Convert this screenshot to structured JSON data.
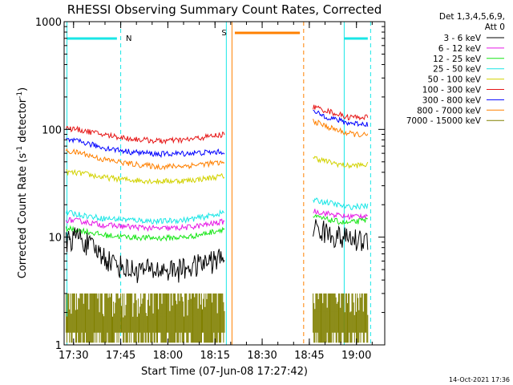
{
  "chart_data": {
    "type": "line",
    "title": "RHESSI Observing Summary Count Rates, Corrected",
    "xlabel": "Start Time (07-Jun-08 17:27:42)",
    "ylabel_parts": [
      "Corrected Count Rate (s",
      "-1",
      " detector",
      "-1",
      ")"
    ],
    "yscale": "log",
    "ylim": [
      1,
      1000
    ],
    "xlim_min": [
      17.45,
      19.15
    ],
    "x_ticks": [
      {
        "label": "17:30",
        "h": 17.5
      },
      {
        "label": "17:45",
        "h": 17.75
      },
      {
        "label": "18:00",
        "h": 18.0
      },
      {
        "label": "18:15",
        "h": 18.25
      },
      {
        "label": "18:30",
        "h": 18.5
      },
      {
        "label": "18:45",
        "h": 18.75
      },
      {
        "label": "19:00",
        "h": 19.0
      }
    ],
    "y_ticks": [
      {
        "label": "1",
        "v": 1
      },
      {
        "label": "10",
        "v": 10
      },
      {
        "label": "100",
        "v": 100
      },
      {
        "label": "1000",
        "v": 1000
      }
    ],
    "legend_header": [
      "Det 1,3,4,5,6,9,",
      "Att 0"
    ],
    "series": [
      {
        "name": "3 - 6 keV",
        "color": "#000000",
        "seg1": [
          [
            17.46,
            9
          ],
          [
            17.52,
            10.5
          ],
          [
            17.6,
            8
          ],
          [
            17.7,
            6
          ],
          [
            17.8,
            5
          ],
          [
            17.95,
            5
          ],
          [
            18.05,
            5
          ],
          [
            18.15,
            5.5
          ],
          [
            18.25,
            6.2
          ],
          [
            18.3,
            6.5
          ]
        ],
        "seg2": [
          [
            18.77,
            12.5
          ],
          [
            18.85,
            11
          ],
          [
            18.92,
            10
          ],
          [
            19.0,
            9.5
          ],
          [
            19.06,
            9.5
          ]
        ]
      },
      {
        "name": "6 - 12 keV",
        "color": "#e619e6",
        "seg1": [
          [
            17.46,
            14.5
          ],
          [
            17.55,
            14
          ],
          [
            17.65,
            13
          ],
          [
            17.8,
            12.5
          ],
          [
            17.95,
            12
          ],
          [
            18.1,
            12.3
          ],
          [
            18.2,
            13
          ],
          [
            18.3,
            14
          ]
        ],
        "seg2": [
          [
            18.77,
            17.5
          ],
          [
            18.85,
            16.5
          ],
          [
            18.95,
            15.5
          ],
          [
            19.06,
            16
          ]
        ]
      },
      {
        "name": "12 - 25 keV",
        "color": "#16e616",
        "seg1": [
          [
            17.46,
            12
          ],
          [
            17.55,
            11.5
          ],
          [
            17.65,
            10.5
          ],
          [
            17.8,
            10
          ],
          [
            17.95,
            9.8
          ],
          [
            18.1,
            10
          ],
          [
            18.2,
            10.8
          ],
          [
            18.3,
            12
          ]
        ],
        "seg2": [
          [
            18.77,
            15.5
          ],
          [
            18.85,
            14.5
          ],
          [
            18.95,
            13.5
          ],
          [
            19.06,
            14.5
          ]
        ]
      },
      {
        "name": "25 - 50 keV",
        "color": "#19e6e6",
        "seg1": [
          [
            17.46,
            17
          ],
          [
            17.55,
            16
          ],
          [
            17.65,
            15
          ],
          [
            17.8,
            14.5
          ],
          [
            17.95,
            14
          ],
          [
            18.1,
            14.5
          ],
          [
            18.2,
            15.5
          ],
          [
            18.3,
            17
          ]
        ],
        "seg2": [
          [
            18.77,
            22
          ],
          [
            18.85,
            21
          ],
          [
            18.95,
            19
          ],
          [
            19.06,
            19.5
          ]
        ]
      },
      {
        "name": "50 - 100 keV",
        "color": "#d2d200",
        "seg1": [
          [
            17.46,
            40
          ],
          [
            17.55,
            39
          ],
          [
            17.65,
            36
          ],
          [
            17.8,
            34
          ],
          [
            17.95,
            33
          ],
          [
            18.1,
            33.5
          ],
          [
            18.2,
            35
          ],
          [
            18.3,
            37
          ]
        ],
        "seg2": [
          [
            18.77,
            55
          ],
          [
            18.85,
            50
          ],
          [
            18.95,
            46
          ],
          [
            19.06,
            47
          ]
        ]
      },
      {
        "name": "100 - 300 keV",
        "color": "#e61515",
        "seg1": [
          [
            17.46,
            103
          ],
          [
            17.55,
            98
          ],
          [
            17.65,
            90
          ],
          [
            17.8,
            82
          ],
          [
            17.95,
            78
          ],
          [
            18.1,
            80
          ],
          [
            18.2,
            85
          ],
          [
            18.3,
            90
          ]
        ],
        "seg2": [
          [
            18.77,
            162
          ],
          [
            18.85,
            148
          ],
          [
            18.95,
            130
          ],
          [
            19.06,
            130
          ]
        ]
      },
      {
        "name": "300 - 800 keV",
        "color": "#0000ff",
        "seg1": [
          [
            17.46,
            80
          ],
          [
            17.55,
            76
          ],
          [
            17.65,
            68
          ],
          [
            17.8,
            62
          ],
          [
            17.95,
            59
          ],
          [
            18.1,
            60
          ],
          [
            18.2,
            61
          ],
          [
            18.3,
            62
          ]
        ],
        "seg2": [
          [
            18.77,
            145
          ],
          [
            18.85,
            130
          ],
          [
            18.95,
            115
          ],
          [
            19.06,
            112
          ]
        ]
      },
      {
        "name": "800 - 7000 keV",
        "color": "#ff8000",
        "seg1": [
          [
            17.46,
            63
          ],
          [
            17.55,
            60
          ],
          [
            17.65,
            53
          ],
          [
            17.8,
            48
          ],
          [
            17.95,
            45
          ],
          [
            18.1,
            46
          ],
          [
            18.2,
            48
          ],
          [
            18.3,
            49
          ]
        ],
        "seg2": [
          [
            18.77,
            120
          ],
          [
            18.85,
            105
          ],
          [
            18.95,
            92
          ],
          [
            19.06,
            88
          ]
        ]
      },
      {
        "name": "7000 - 15000 keV",
        "color": "#808000",
        "seg1": [
          [
            17.46,
            1.6
          ],
          [
            18.3,
            1.6
          ]
        ],
        "seg2": [
          [
            18.77,
            1.6
          ],
          [
            19.06,
            1.6
          ]
        ]
      }
    ],
    "markers": [
      {
        "label": "N",
        "color": "#19e6e6"
      },
      {
        "label": "S",
        "color": "#ff8000"
      }
    ],
    "timestamp": "14-Oct-2021 17:36"
  }
}
